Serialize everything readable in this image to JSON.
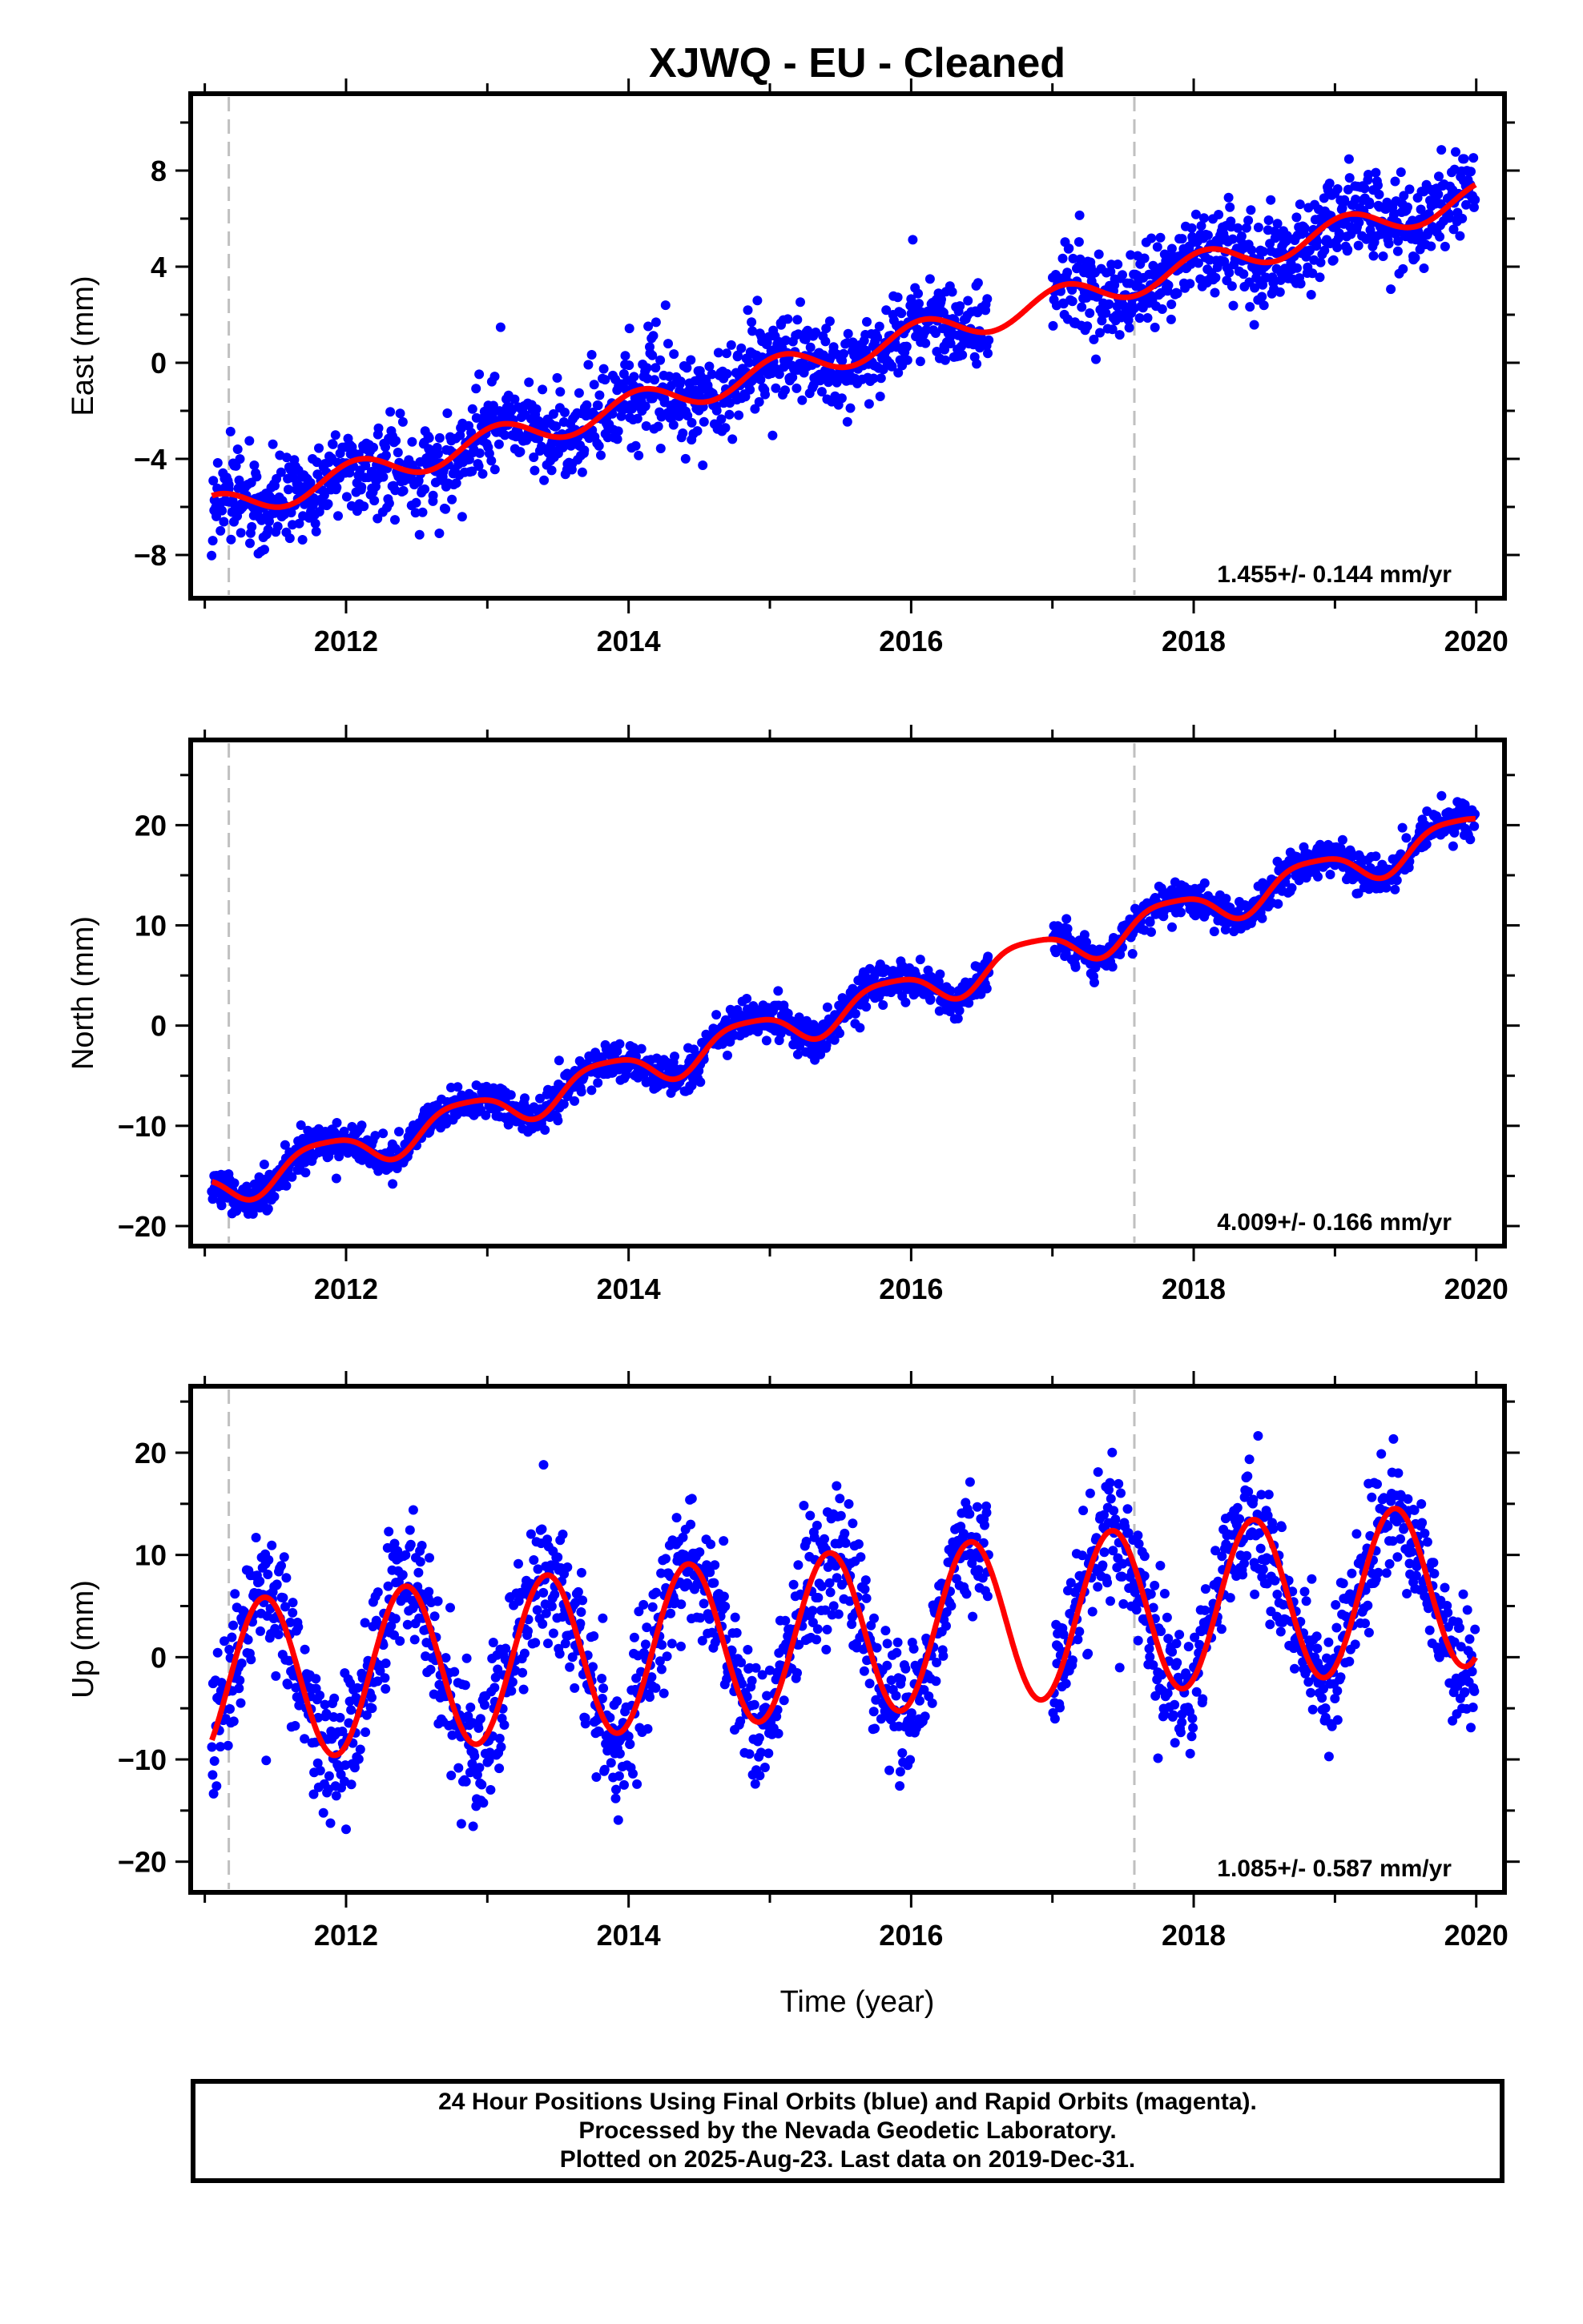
{
  "title": "XJWQ  - EU - Cleaned",
  "colors": {
    "data": "#0000ff",
    "model": "#ff0000",
    "step": "#c0c0c0",
    "frame": "#000000"
  },
  "xlabel": "Time (year)",
  "caption": [
    "24 Hour Positions Using Final Orbits (blue) and Rapid Orbits (magenta).",
    "Processed by the Nevada Geodetic Laboratory.",
    "Plotted on 2025-Aug-23. Last data on 2019-Dec-31."
  ],
  "chart_data": [
    {
      "type": "scatter",
      "component": "East",
      "ylabel": "East (mm)",
      "xlim": [
        2010.9,
        2020.2
      ],
      "ylim": [
        -9.8,
        11.2
      ],
      "xticks": [
        2012,
        2014,
        2016,
        2018,
        2020
      ],
      "yticks": [
        -8,
        -4,
        0,
        4,
        8
      ],
      "ytick_labels": [
        "−8",
        "−4",
        "0",
        "4",
        "8"
      ],
      "steps": [
        2011.17,
        2017.58
      ],
      "rate_text": "1.455+/- 0.144 mm/yr",
      "model": {
        "t0": 2011.0,
        "intercept": -6.2,
        "rate": 1.455,
        "annual_amp": 0.6,
        "annual_phase": 1.1,
        "semi_amp": 0.0,
        "semi_phase": 0.0
      },
      "data_gap": [
        2016.55,
        2017.0
      ],
      "noise_mm": 0.9,
      "n_points": 1900
    },
    {
      "type": "scatter",
      "component": "North",
      "ylabel": "North (mm)",
      "xlim": [
        2010.9,
        2020.2
      ],
      "ylim": [
        -22.0,
        28.5
      ],
      "xticks": [
        2012,
        2014,
        2016,
        2018,
        2020
      ],
      "yticks": [
        -20,
        -10,
        0,
        10,
        20
      ],
      "ytick_labels": [
        "−20",
        "−10",
        "0",
        "10",
        "20"
      ],
      "steps": [
        2011.17,
        2017.58
      ],
      "rate_text": "4.009+/- 0.166 mm/yr",
      "model": {
        "t0": 2011.0,
        "intercept": -16.5,
        "rate": 4.009,
        "annual_amp": 1.8,
        "annual_phase": 2.6,
        "semi_amp": 0.4,
        "semi_phase": 0.3
      },
      "data_gap": [
        2016.55,
        2017.0
      ],
      "noise_mm": 0.9,
      "n_points": 1900
    },
    {
      "type": "scatter",
      "component": "Up",
      "ylabel": "Up (mm)",
      "xlim": [
        2010.9,
        2020.2
      ],
      "ylim": [
        -23.0,
        26.5
      ],
      "xticks": [
        2012,
        2014,
        2016,
        2018,
        2020
      ],
      "yticks": [
        -20,
        -10,
        0,
        10,
        20
      ],
      "ytick_labels": [
        "−20",
        "−10",
        "0",
        "10",
        "20"
      ],
      "steps": [
        2011.17,
        2017.58
      ],
      "rate_text": "1.085+/- 0.587 mm/yr",
      "model": {
        "t0": 2011.0,
        "intercept": -2.6,
        "rate": 1.085,
        "annual_amp": 8.0,
        "annual_phase": 5.2,
        "semi_amp": 0.0,
        "semi_phase": 0.0
      },
      "data_gap": [
        2016.55,
        2017.0
      ],
      "noise_mm": 3.2,
      "n_points": 1900
    }
  ]
}
